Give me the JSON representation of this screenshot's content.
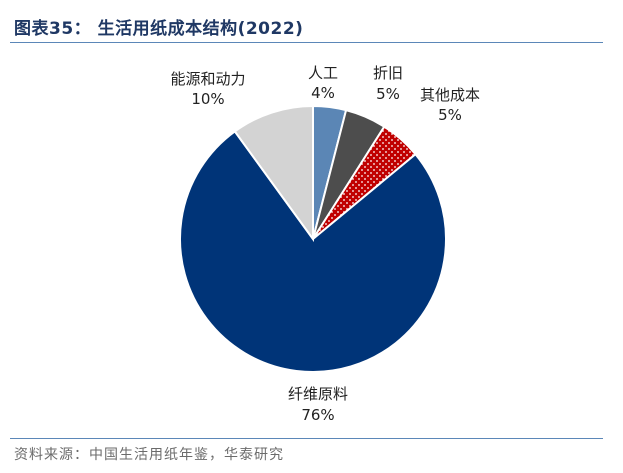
{
  "header": {
    "title": "图表35：  生活用纸成本结构(2022)"
  },
  "footer": {
    "source": "资料来源：中国生活用纸年鉴，华泰研究"
  },
  "chart_data": {
    "type": "pie",
    "title": "生活用纸成本结构(2022)",
    "slices": [
      {
        "name": "人工",
        "value": 4,
        "label": "4%",
        "color": "#5b86b5"
      },
      {
        "name": "折旧",
        "value": 5,
        "label": "5%",
        "color": "#4d4d4d"
      },
      {
        "name": "其他成本",
        "value": 5,
        "label": "5%",
        "color": "#c00000",
        "pattern": "dots"
      },
      {
        "name": "纤维原料",
        "value": 76,
        "label": "76%",
        "color": "#003478"
      },
      {
        "name": "能源和动力",
        "value": 10,
        "label": "10%",
        "color": "#d3d3d3"
      }
    ],
    "legend": "none"
  }
}
